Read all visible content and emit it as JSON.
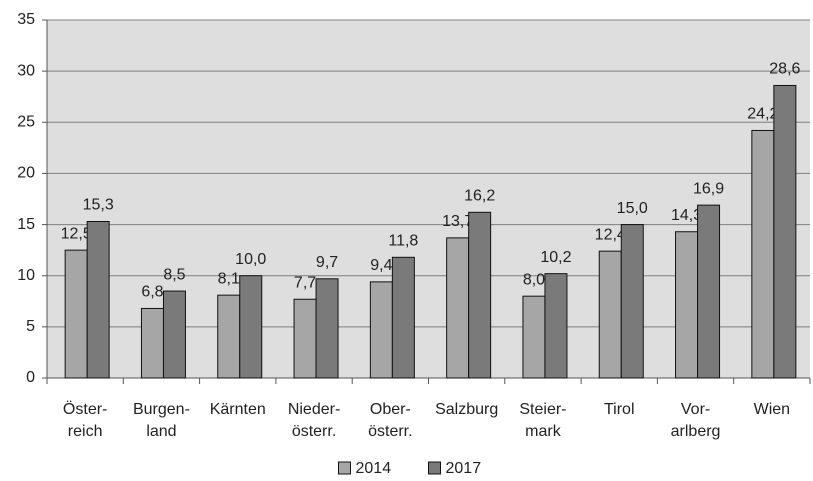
{
  "chart_data": {
    "type": "bar",
    "categories": [
      [
        "Öster-",
        "reich"
      ],
      [
        "Burgen-",
        "land"
      ],
      [
        "Kärnten"
      ],
      [
        "Nieder-",
        "österr."
      ],
      [
        "Ober-",
        "österr."
      ],
      [
        "Salzburg"
      ],
      [
        "Steier-",
        "mark"
      ],
      [
        "Tirol"
      ],
      [
        "Vor-",
        "arlberg"
      ],
      [
        "Wien"
      ]
    ],
    "series": [
      {
        "name": "2014",
        "color": "#a6a6a6",
        "values": [
          12.5,
          6.8,
          8.1,
          7.7,
          9.4,
          13.7,
          8.0,
          12.4,
          14.3,
          24.2
        ],
        "value_labels": [
          "12,5",
          "6,8",
          "8,1",
          "7,7",
          "9,4",
          "13,7",
          "8,0",
          "12,4",
          "14,3",
          "24,2"
        ]
      },
      {
        "name": "2017",
        "color": "#7a7a7a",
        "values": [
          15.3,
          8.5,
          10.0,
          9.7,
          11.8,
          16.2,
          10.2,
          15.0,
          16.9,
          28.6
        ],
        "value_labels": [
          "15,3",
          "8,5",
          "10,0",
          "9,7",
          "11,8",
          "16,2",
          "10,2",
          "15,0",
          "16,9",
          "28,6"
        ]
      }
    ],
    "ylim": [
      0,
      35
    ],
    "yticks": [
      0,
      5,
      10,
      15,
      20,
      25,
      30,
      35
    ],
    "grid": true,
    "legend": "bottom"
  }
}
